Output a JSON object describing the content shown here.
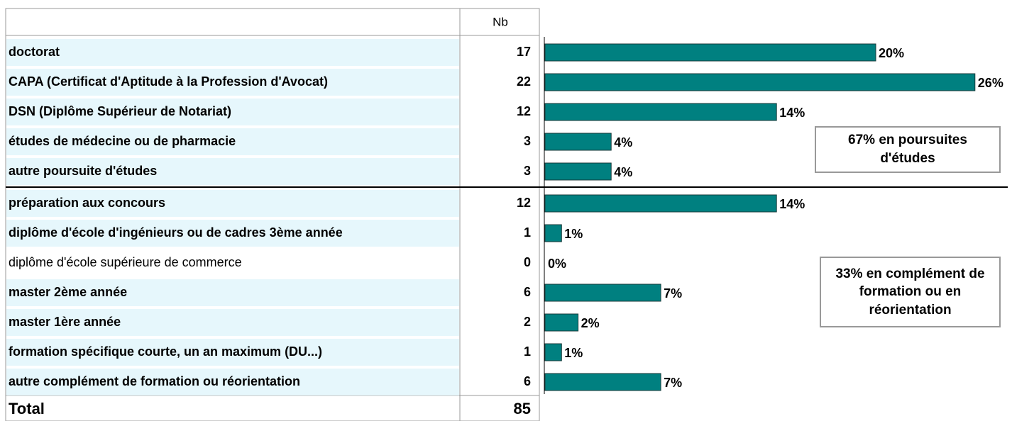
{
  "chart_data": {
    "type": "bar",
    "column_header": "Nb",
    "categories": [
      "doctorat",
      "CAPA (Certificat d'Aptitude à la Profession d'Avocat)",
      "DSN (Diplôme Supérieur de Notariat)",
      "études de médecine ou de pharmacie",
      "autre poursuite d'études",
      "préparation aux concours",
      "diplôme d'école d'ingénieurs ou de cadres 3ème année",
      "diplôme d'école supérieure de commerce",
      "master 2ème année",
      "master 1ère année",
      "formation spécifique courte, un an maximum (DU...)",
      "autre complément de formation ou réorientation"
    ],
    "counts": [
      17,
      22,
      12,
      3,
      3,
      12,
      1,
      0,
      6,
      2,
      1,
      6
    ],
    "bold_rows": [
      true,
      true,
      true,
      true,
      true,
      true,
      true,
      false,
      true,
      true,
      true,
      true
    ],
    "total_label": "Total",
    "total": 85,
    "values": [
      20,
      26,
      14,
      4,
      4,
      14,
      1,
      0,
      7,
      2,
      1,
      7
    ],
    "value_labels": [
      "20%",
      "26%",
      "14%",
      "4%",
      "4%",
      "14%",
      "1%",
      "0%",
      "7%",
      "2%",
      "1%",
      "7%"
    ],
    "color": "#008080",
    "annotations": [
      "67%  en poursuites d'études",
      "33% en complément de formation ou en réorientation"
    ]
  }
}
